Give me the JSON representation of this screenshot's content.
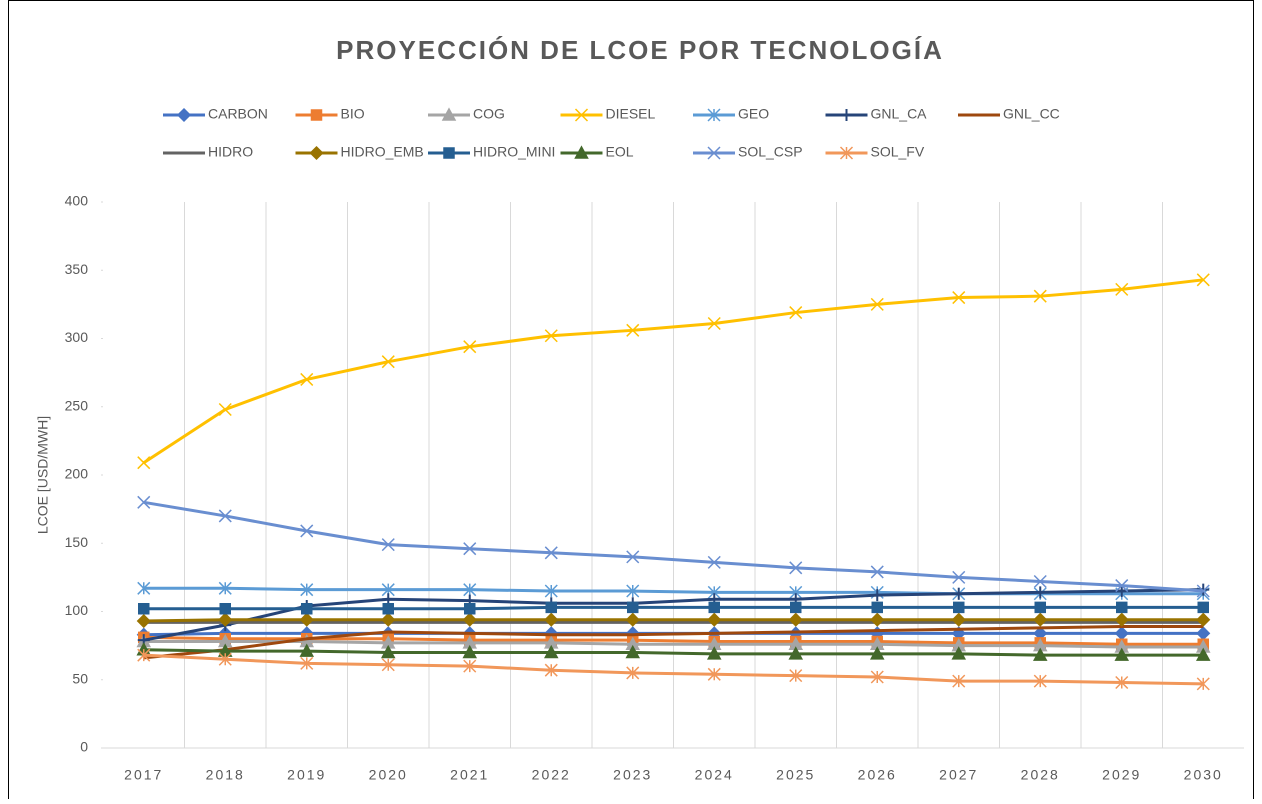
{
  "chart_data": {
    "type": "line",
    "title": "PROYECCIÓN DE LCOE POR TECNOLOGÍA",
    "y_label": "LCOE [USD/MWH]",
    "categories": [
      "2017",
      "2018",
      "2019",
      "2020",
      "2021",
      "2022",
      "2023",
      "2024",
      "2025",
      "2026",
      "2027",
      "2028",
      "2029",
      "2030"
    ],
    "ylim": [
      0,
      400
    ],
    "yticks": [
      0,
      50,
      100,
      150,
      200,
      250,
      300,
      350,
      400
    ],
    "grid": "vertical",
    "legend": "top",
    "series": [
      {
        "name": "CARBON",
        "color": "#4472c4",
        "marker": "diamond",
        "values": [
          83,
          84,
          84,
          84,
          84,
          84,
          84,
          84,
          84,
          84,
          84,
          84,
          84,
          84
        ]
      },
      {
        "name": "BIO",
        "color": "#ed7d31",
        "marker": "square",
        "values": [
          81,
          80,
          80,
          80,
          79,
          79,
          79,
          78,
          78,
          78,
          77,
          77,
          76,
          76
        ]
      },
      {
        "name": "COG",
        "color": "#a5a5a5",
        "marker": "triangle",
        "values": [
          78,
          78,
          78,
          77,
          77,
          77,
          76,
          76,
          76,
          76,
          75,
          75,
          74,
          74
        ]
      },
      {
        "name": "DIESEL",
        "color": "#ffc000",
        "marker": "x",
        "values": [
          209,
          248,
          270,
          283,
          294,
          302,
          306,
          311,
          319,
          325,
          330,
          331,
          336,
          343
        ]
      },
      {
        "name": "GEO",
        "color": "#5b9bd5",
        "marker": "asterisk",
        "values": [
          117,
          117,
          116,
          116,
          116,
          115,
          115,
          114,
          114,
          114,
          113,
          113,
          113,
          113
        ]
      },
      {
        "name": "GNL_CA",
        "color": "#264478",
        "marker": "plus",
        "values": [
          79,
          90,
          104,
          109,
          108,
          106,
          106,
          109,
          109,
          112,
          113,
          114,
          115,
          116
        ]
      },
      {
        "name": "GNL_CC",
        "color": "#9e480e",
        "marker": "none",
        "values": [
          66,
          72,
          80,
          85,
          84,
          83,
          83,
          84,
          85,
          86,
          87,
          88,
          89,
          89
        ]
      },
      {
        "name": "HIDRO",
        "color": "#636363",
        "marker": "none",
        "values": [
          92,
          92,
          92,
          92,
          92,
          92,
          92,
          92,
          92,
          92,
          92,
          92,
          92,
          92
        ]
      },
      {
        "name": "HIDRO_EMB",
        "color": "#997300",
        "marker": "diamond",
        "values": [
          93,
          94,
          94,
          94,
          94,
          94,
          94,
          94,
          94,
          94,
          94,
          94,
          94,
          94
        ]
      },
      {
        "name": "HIDRO_MINI",
        "color": "#255e91",
        "marker": "square",
        "values": [
          102,
          102,
          102,
          102,
          102,
          103,
          103,
          103,
          103,
          103,
          103,
          103,
          103,
          103
        ]
      },
      {
        "name": "EOL",
        "color": "#43682b",
        "marker": "triangle",
        "values": [
          72,
          71,
          71,
          70,
          70,
          70,
          70,
          69,
          69,
          69,
          69,
          68,
          68,
          68
        ]
      },
      {
        "name": "SOL_CSP",
        "color": "#698ed0",
        "marker": "x",
        "values": [
          180,
          170,
          159,
          149,
          146,
          143,
          140,
          136,
          132,
          129,
          125,
          122,
          119,
          115
        ]
      },
      {
        "name": "SOL_FV",
        "color": "#f1975a",
        "marker": "asterisk",
        "values": [
          68,
          65,
          62,
          61,
          60,
          57,
          55,
          54,
          53,
          52,
          49,
          49,
          48,
          47
        ]
      }
    ]
  }
}
